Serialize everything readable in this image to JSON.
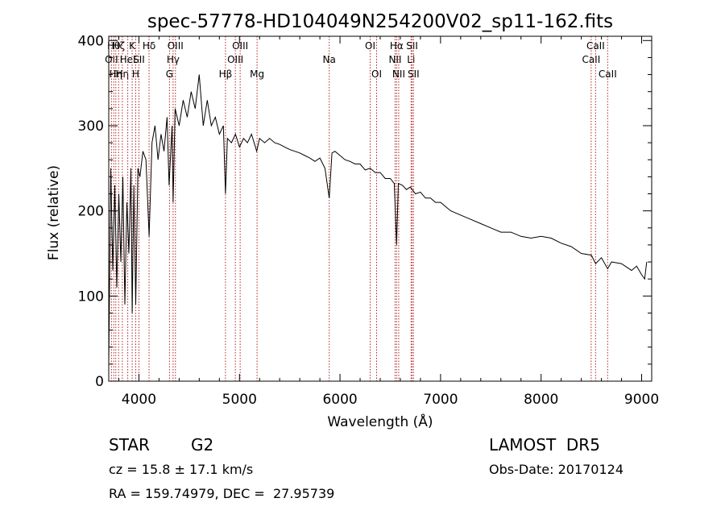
{
  "chart_data": {
    "type": "line",
    "title": "spec-57778-HD104049N254200V02_sp11-162.fits",
    "xlabel": "Wavelength (Å)",
    "ylabel": "Flux (relative)",
    "xlim": [
      3700,
      9100
    ],
    "ylim": [
      0,
      405
    ],
    "x_ticks": [
      4000,
      5000,
      6000,
      7000,
      8000,
      9000
    ],
    "y_ticks": [
      0,
      100,
      200,
      300,
      400
    ],
    "x_tick_labels": [
      "4000",
      "5000",
      "6000",
      "7000",
      "8000",
      "9000"
    ],
    "y_tick_labels": [
      "0",
      "100",
      "200",
      "300",
      "400"
    ],
    "grid": false,
    "legend": "none",
    "line_color": "#000000",
    "marker_color": "#b22222",
    "spectrum": {
      "x": [
        3700,
        3720,
        3740,
        3760,
        3780,
        3800,
        3820,
        3840,
        3860,
        3880,
        3900,
        3920,
        3933,
        3950,
        3968,
        3990,
        4010,
        4040,
        4070,
        4101,
        4130,
        4160,
        4190,
        4220,
        4250,
        4280,
        4300,
        4330,
        4340,
        4360,
        4400,
        4440,
        4480,
        4520,
        4560,
        4600,
        4640,
        4680,
        4720,
        4760,
        4800,
        4840,
        4861,
        4880,
        4920,
        4960,
        5000,
        5040,
        5080,
        5120,
        5172,
        5200,
        5250,
        5300,
        5350,
        5400,
        5450,
        5500,
        5550,
        5600,
        5650,
        5700,
        5750,
        5800,
        5850,
        5893,
        5920,
        5950,
        6000,
        6050,
        6100,
        6150,
        6200,
        6250,
        6300,
        6350,
        6400,
        6450,
        6500,
        6540,
        6563,
        6580,
        6620,
        6660,
        6700,
        6750,
        6800,
        6850,
        6900,
        6950,
        7000,
        7100,
        7200,
        7300,
        7400,
        7500,
        7600,
        7700,
        7800,
        7900,
        8000,
        8100,
        8200,
        8300,
        8400,
        8500,
        8542,
        8600,
        8662,
        8700,
        8800,
        8900,
        8950,
        9000,
        9030,
        9050
      ],
      "y": [
        20,
        250,
        130,
        230,
        110,
        220,
        140,
        240,
        90,
        210,
        150,
        250,
        80,
        230,
        90,
        250,
        240,
        270,
        260,
        170,
        280,
        300,
        260,
        290,
        270,
        310,
        230,
        300,
        210,
        320,
        300,
        330,
        310,
        340,
        320,
        360,
        300,
        330,
        300,
        310,
        290,
        300,
        220,
        285,
        280,
        290,
        275,
        285,
        280,
        290,
        270,
        285,
        280,
        285,
        280,
        278,
        275,
        272,
        270,
        268,
        265,
        262,
        258,
        262,
        250,
        215,
        268,
        270,
        265,
        260,
        258,
        255,
        255,
        248,
        250,
        245,
        245,
        238,
        238,
        232,
        160,
        232,
        230,
        225,
        228,
        220,
        222,
        215,
        215,
        210,
        210,
        200,
        195,
        190,
        185,
        180,
        175,
        175,
        170,
        168,
        170,
        168,
        162,
        158,
        150,
        148,
        138,
        145,
        132,
        140,
        138,
        130,
        135,
        125,
        120,
        140
      ]
    },
    "line_markers": [
      {
        "wavelength": 3727,
        "label": "OII",
        "row": 2
      },
      {
        "wavelength": 3750,
        "label": "Hθ",
        "row": 1
      },
      {
        "wavelength": 3770,
        "label": "Hη",
        "row": 3
      },
      {
        "wavelength": 3798,
        "label": "Hζ",
        "row": 1
      },
      {
        "wavelength": 3835,
        "label": "Hη",
        "row": 3
      },
      {
        "wavelength": 3889,
        "label": "HeI",
        "row": 2
      },
      {
        "wavelength": 3933,
        "label": "K",
        "row": 1
      },
      {
        "wavelength": 3968,
        "label": "H",
        "row": 3
      },
      {
        "wavelength": 4000,
        "label": "SII",
        "row": 2
      },
      {
        "wavelength": 4101,
        "label": "Hδ",
        "row": 1
      },
      {
        "wavelength": 4340,
        "label": "Hγ",
        "row": 2
      },
      {
        "wavelength": 4304,
        "label": "G",
        "row": 3
      },
      {
        "wavelength": 4363,
        "label": "OIII",
        "row": 1
      },
      {
        "wavelength": 4861,
        "label": "Hβ",
        "row": 3
      },
      {
        "wavelength": 4959,
        "label": "OIII",
        "row": 2
      },
      {
        "wavelength": 5007,
        "label": "OIII",
        "row": 1
      },
      {
        "wavelength": 5175,
        "label": "Mg",
        "row": 3
      },
      {
        "wavelength": 5893,
        "label": "Na",
        "row": 2
      },
      {
        "wavelength": 6300,
        "label": "OI",
        "row": 1
      },
      {
        "wavelength": 6364,
        "label": "OI",
        "row": 3
      },
      {
        "wavelength": 6548,
        "label": "NII",
        "row": 2
      },
      {
        "wavelength": 6563,
        "label": "Hα",
        "row": 1
      },
      {
        "wavelength": 6584,
        "label": "NII",
        "row": 3
      },
      {
        "wavelength": 6707,
        "label": "Li",
        "row": 2
      },
      {
        "wavelength": 6717,
        "label": "SII",
        "row": 1
      },
      {
        "wavelength": 6731,
        "label": "SII",
        "row": 3
      },
      {
        "wavelength": 8498,
        "label": "CaII",
        "row": 2
      },
      {
        "wavelength": 8542,
        "label": "CaII",
        "row": 1
      },
      {
        "wavelength": 8662,
        "label": "CaII",
        "row": 3
      }
    ]
  },
  "info": {
    "object_class": "STAR",
    "subclass": "G2",
    "redshift_line": "cz = 15.8 ± 17.1 km/s",
    "coords_line": "RA = 159.74979, DEC =  27.95739",
    "survey": "LAMOST  DR5",
    "obs_date": "Obs-Date: 20170124"
  }
}
